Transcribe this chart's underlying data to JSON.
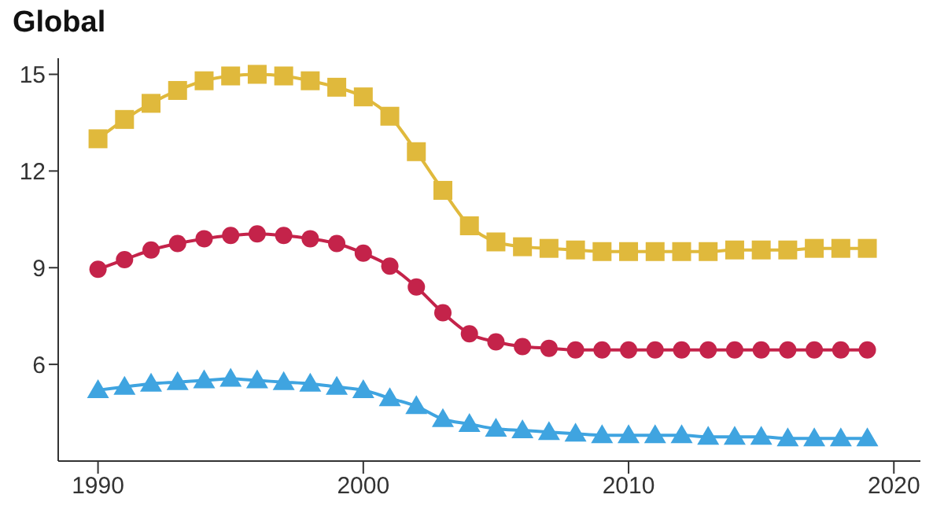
{
  "chart_data": {
    "type": "line",
    "title": "Global",
    "x": [
      1990,
      1991,
      1992,
      1993,
      1994,
      1995,
      1996,
      1997,
      1998,
      1999,
      2000,
      2001,
      2002,
      2003,
      2004,
      2005,
      2006,
      2007,
      2008,
      2009,
      2010,
      2011,
      2012,
      2013,
      2014,
      2015,
      2016,
      2017,
      2018,
      2019
    ],
    "series": [
      {
        "color": "#e0b93c",
        "marker": "square",
        "values": [
          13.0,
          13.6,
          14.1,
          14.5,
          14.8,
          14.95,
          15.0,
          14.95,
          14.8,
          14.6,
          14.3,
          13.7,
          12.6,
          11.4,
          10.3,
          9.8,
          9.65,
          9.6,
          9.55,
          9.5,
          9.5,
          9.5,
          9.5,
          9.5,
          9.55,
          9.55,
          9.55,
          9.6,
          9.6,
          9.6
        ]
      },
      {
        "color": "#c4234a",
        "marker": "circle",
        "values": [
          8.95,
          9.25,
          9.55,
          9.75,
          9.9,
          10.0,
          10.05,
          10.0,
          9.9,
          9.75,
          9.45,
          9.05,
          8.4,
          7.6,
          6.95,
          6.7,
          6.55,
          6.5,
          6.45,
          6.45,
          6.45,
          6.45,
          6.45,
          6.45,
          6.45,
          6.45,
          6.45,
          6.45,
          6.45,
          6.45
        ]
      },
      {
        "color": "#3fa4e0",
        "marker": "triangle",
        "values": [
          5.2,
          5.3,
          5.4,
          5.45,
          5.5,
          5.55,
          5.5,
          5.45,
          5.4,
          5.3,
          5.2,
          4.95,
          4.7,
          4.3,
          4.15,
          4.0,
          3.95,
          3.9,
          3.85,
          3.8,
          3.8,
          3.8,
          3.8,
          3.75,
          3.75,
          3.75,
          3.7,
          3.7,
          3.7,
          3.7
        ]
      }
    ],
    "xlim": [
      1988.5,
      2021
    ],
    "xticks": [
      1990,
      2000,
      2010,
      2020
    ],
    "ylim": [
      3,
      15.5
    ],
    "yticks": [
      6,
      9,
      12,
      15
    ],
    "grid": false,
    "legend": false
  }
}
